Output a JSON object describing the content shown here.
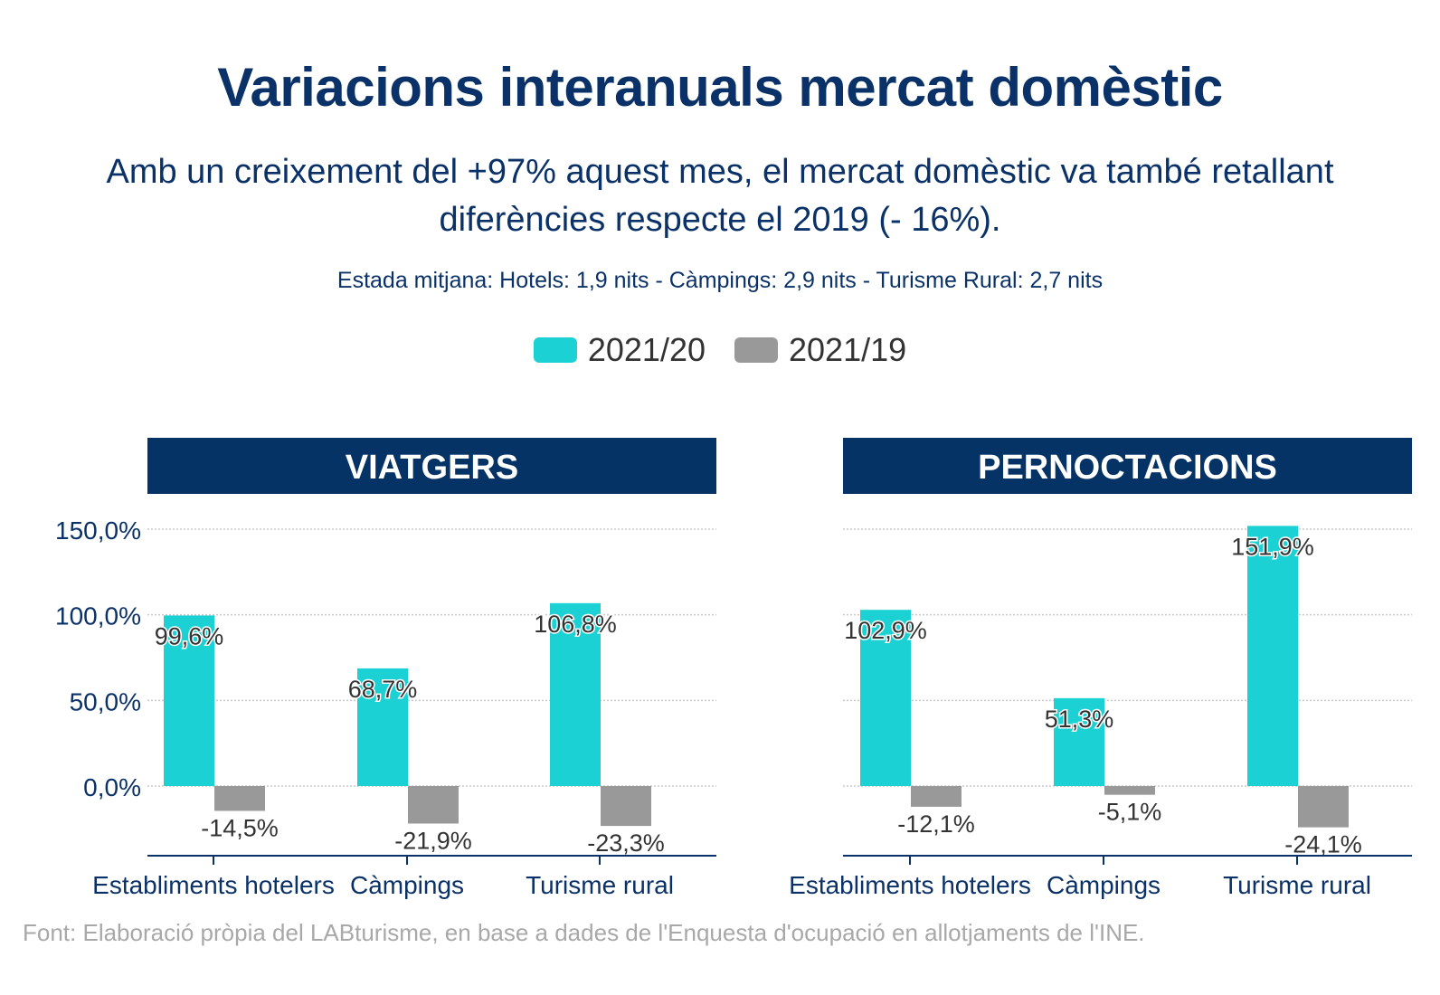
{
  "title": "Variacions interanuals mercat domèstic",
  "subtitle": "Amb un creixement del +97% aquest mes, el mercat domèstic va també retallant diferències respecte el 2019 (- 16%).",
  "note": "Estada mitjana: Hotels: 1,9 nits - Càmpings: 2,9 nits - Turisme Rural: 2,7 nits",
  "footer": "Font: Elaboració pròpia del LABturisme, en base a dades de l'Enquesta d'ocupació en allotjaments de l'INE.",
  "colors": {
    "accent": "#1cd1d3",
    "secondary": "#999999",
    "header": "#063366",
    "text": "#0b3268"
  },
  "legend": [
    {
      "label": "2021/20",
      "color": "#1cd1d3"
    },
    {
      "label": "2021/19",
      "color": "#999999"
    }
  ],
  "chart_data": [
    {
      "type": "bar",
      "panel_title": "VIATGERS",
      "categories": [
        "Establiments hotelers",
        "Càmpings",
        "Turisme rural"
      ],
      "series": [
        {
          "name": "2021/20",
          "values": [
            99.6,
            68.7,
            106.8
          ],
          "labels": [
            "99,6%",
            "68,7%",
            "106,8%"
          ]
        },
        {
          "name": "2021/19",
          "values": [
            -14.5,
            -21.9,
            -23.3
          ],
          "labels": [
            "-14,5%",
            "-21,9%",
            "-23,3%"
          ]
        }
      ],
      "yticks": [
        0,
        50,
        100,
        150
      ],
      "ytick_labels": [
        "0,0%",
        "50,0%",
        "100,0%",
        "150,0%"
      ],
      "ylim": [
        -40,
        150
      ],
      "grid": true
    },
    {
      "type": "bar",
      "panel_title": "PERNOCTACIONS",
      "categories": [
        "Establiments hotelers",
        "Càmpings",
        "Turisme rural"
      ],
      "series": [
        {
          "name": "2021/20",
          "values": [
            102.9,
            51.3,
            151.9
          ],
          "labels": [
            "102,9%",
            "51,3%",
            "151,9%"
          ]
        },
        {
          "name": "2021/19",
          "values": [
            -12.1,
            -5.1,
            -24.1
          ],
          "labels": [
            "-12,1%",
            "-5,1%",
            "-24,1%"
          ]
        }
      ],
      "yticks": [
        0,
        50,
        100,
        150
      ],
      "ylim": [
        -40,
        150
      ],
      "grid": true
    }
  ]
}
